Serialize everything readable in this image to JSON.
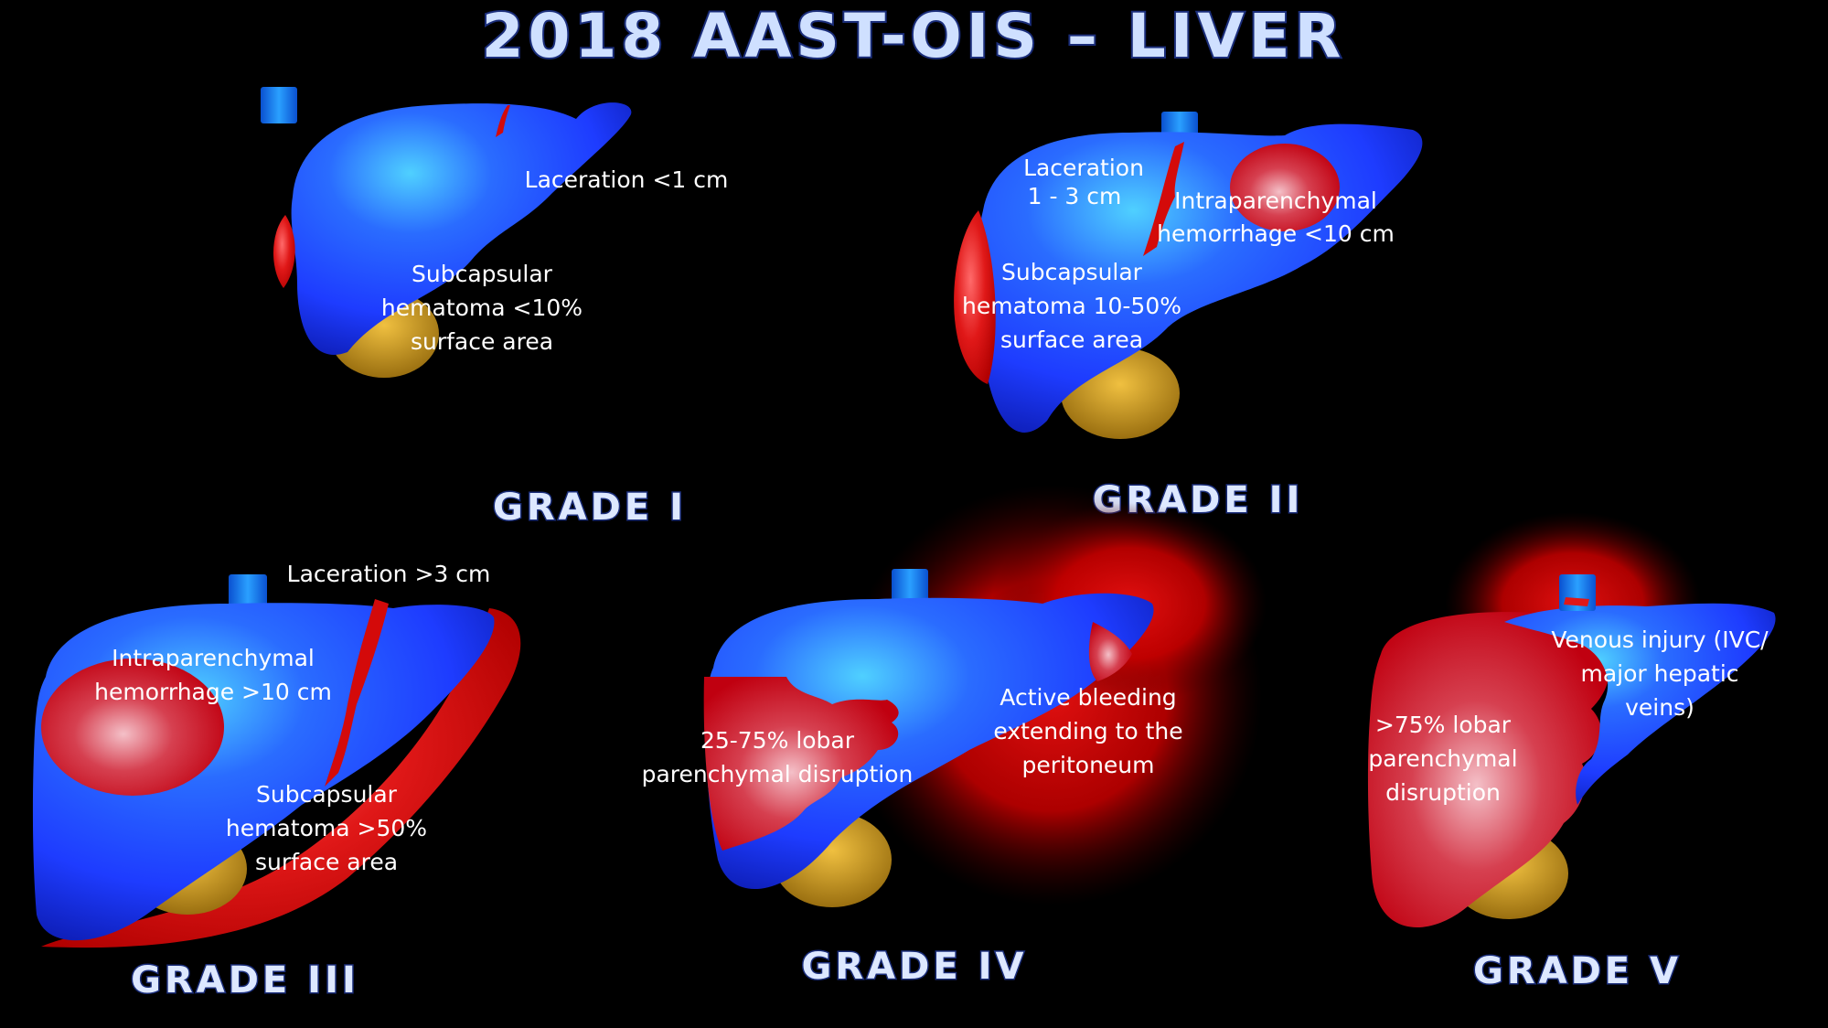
{
  "title": "2018 AAST-OIS – LIVER",
  "grades": [
    {
      "name": "GRADE I",
      "labels": {
        "laceration": [
          "Laceration <1 cm"
        ],
        "hematoma": [
          "Subcapsular",
          "hematoma <10%",
          "surface area"
        ]
      }
    },
    {
      "name": "GRADE II",
      "labels": {
        "laceration": [
          "Laceration",
          "1 - 3 cm"
        ],
        "intra": [
          "Intraparenchymal",
          "hemorrhage <10 cm"
        ],
        "hematoma": [
          "Subcapsular",
          "hematoma 10-50%",
          "surface area"
        ]
      }
    },
    {
      "name": "GRADE III",
      "labels": {
        "laceration": [
          "Laceration >3 cm"
        ],
        "intra": [
          "Intraparenchymal",
          "hemorrhage >10 cm"
        ],
        "hematoma": [
          "Subcapsular",
          "hematoma >50%",
          "surface area"
        ]
      }
    },
    {
      "name": "GRADE IV",
      "labels": {
        "disruption": [
          "25-75% lobar",
          "parenchymal disruption"
        ],
        "bleeding": [
          "Active bleeding",
          "extending to the",
          "peritoneum"
        ]
      }
    },
    {
      "name": "GRADE V",
      "labels": {
        "disruption": [
          ">75% lobar",
          "parenchymal",
          "disruption"
        ],
        "venous": [
          "Venous injury (IVC/",
          "major hepatic",
          "veins)"
        ]
      }
    }
  ],
  "colors": {
    "background": "#000000",
    "liver_blue": "#1e3cff",
    "liver_highlight": "#4fd0ff",
    "injury_red": "#d40a0a",
    "gallbladder": "#d2a020",
    "ivc": "#1a7fff",
    "title_fill": "#cfe0ff",
    "title_stroke": "#1a2d7a"
  }
}
